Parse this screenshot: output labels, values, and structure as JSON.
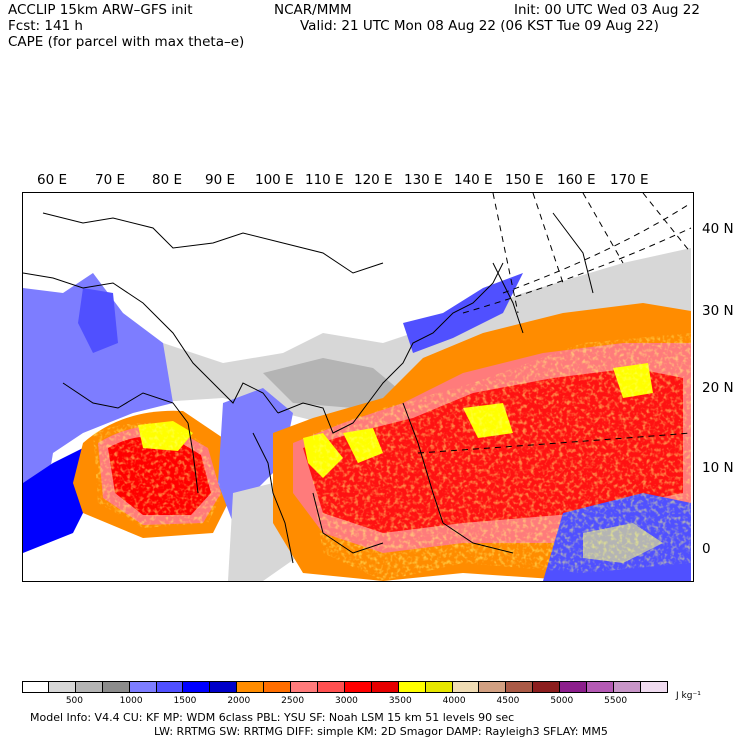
{
  "header": {
    "title_left": "ACCLIP 15km ARW–GFS init",
    "center": "NCAR/MMM",
    "init": "Init: 00 UTC Wed 03 Aug 22",
    "fcst": "Fcst:  141 h",
    "valid": "Valid: 21 UTC Mon 08 Aug 22 (06 KST Tue 09 Aug 22)",
    "field": "CAPE (for parcel with max theta–e)"
  },
  "map": {
    "lon_labels": [
      "60 E",
      "70 E",
      "80 E",
      "90 E",
      "100 E",
      "110 E",
      "120 E",
      "130 E",
      "140 E",
      "150 E",
      "160 E",
      "170 E"
    ],
    "lat_labels": [
      "40 N",
      "30 N",
      "20 N",
      "10 N",
      "0"
    ]
  },
  "colorbar": {
    "colors": [
      "#ffffff",
      "#d7d7d7",
      "#b4b4b4",
      "#8c8c8c",
      "#7d7dff",
      "#5050ff",
      "#0000ff",
      "#0000c8",
      "#ff8c00",
      "#ff6e00",
      "#ff7b7b",
      "#ff5050",
      "#ff0000",
      "#e60000",
      "#ffff00",
      "#e6e600",
      "#f0dcb4",
      "#d2a082",
      "#aa5a46",
      "#8c1e1e",
      "#8c1e8c",
      "#b45ab4",
      "#c896c8",
      "#f0dcf0"
    ],
    "ticks": [
      "500",
      "1000",
      "1500",
      "2000",
      "2500",
      "3000",
      "3500",
      "4000",
      "4500",
      "5000",
      "5500"
    ],
    "units": "J kg⁻¹"
  },
  "footer": {
    "line1": "Model Info: V4.4      CU: KF       MP: WDM 6class   PBL: YSU       SF: Noah LSM     15 km    51 levels   90 sec",
    "line2": "LW: RRTMG    SW: RRTMG   DIFF: simple KM: 2D Smagor DAMP: Rayleigh3   SFLAY: MM5"
  }
}
